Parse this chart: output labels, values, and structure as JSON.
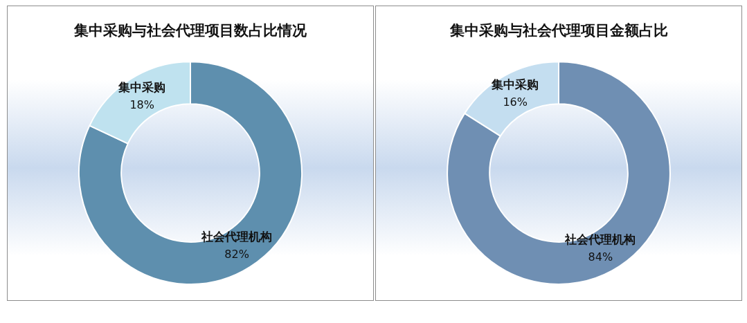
{
  "chart_data": [
    {
      "type": "donut",
      "title": "集中采购与社会代理项目数占比情况",
      "categories": [
        "社会代理机构",
        "集中采购"
      ],
      "values": [
        82,
        18
      ],
      "colors": [
        "#5e8fae",
        "#bfe2ef"
      ],
      "value_labels": [
        "82%",
        "18%"
      ],
      "legend": false
    },
    {
      "type": "donut",
      "title": "集中采购与社会代理项目金额占比",
      "categories": [
        "社会代理机构",
        "集中采购"
      ],
      "values": [
        84,
        16
      ],
      "colors": [
        "#6f8fb3",
        "#c4def0"
      ],
      "value_labels": [
        "84%",
        "16%"
      ],
      "legend": false
    }
  ]
}
